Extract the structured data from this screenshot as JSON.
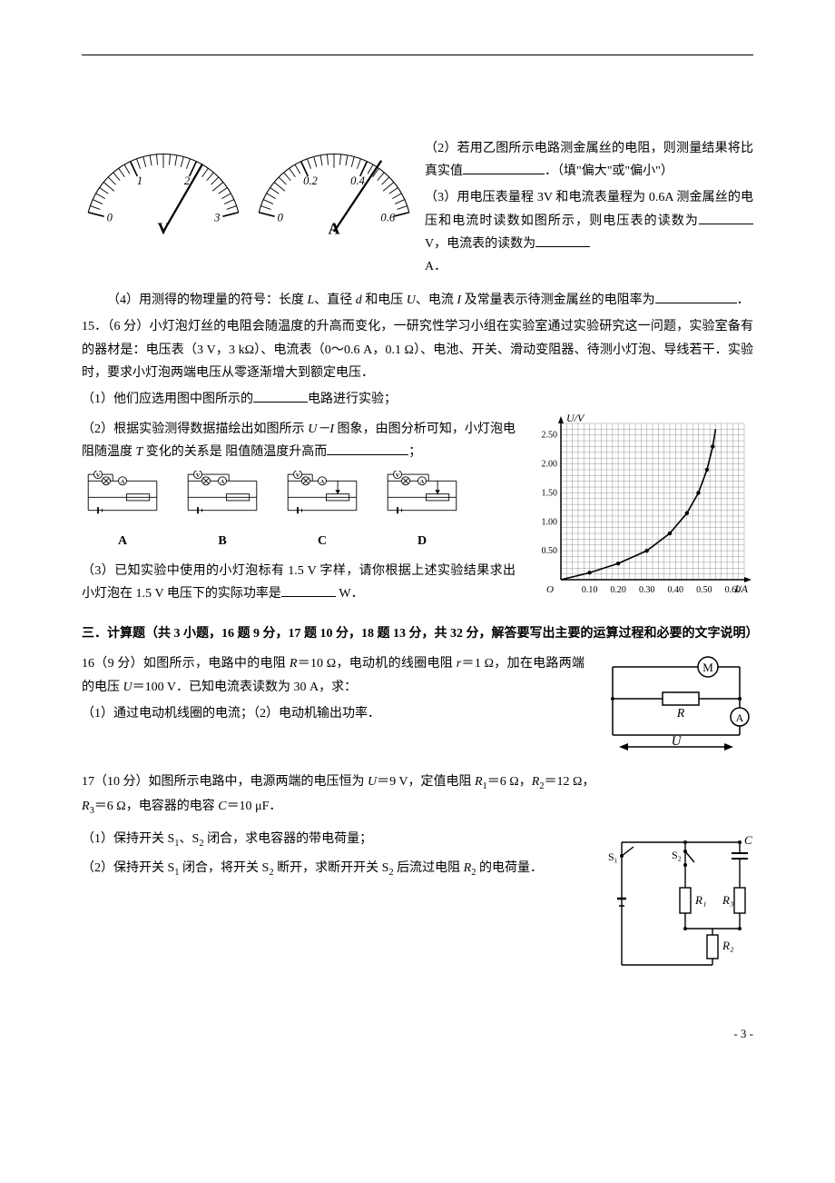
{
  "meters": {
    "volt": {
      "unit": "V",
      "ticks": [
        "0",
        "1",
        "2",
        "3"
      ],
      "needle_value": 2.45
    },
    "amp": {
      "unit": "A",
      "ticks": [
        "0",
        "0.2",
        "0.4",
        "0.6"
      ],
      "needle_value": 0.5
    }
  },
  "q14": {
    "p2": "（2）若用乙图所示电路测金属丝的电阻，则测量结果将比真实值",
    "p2_suffix": "．（填\"偏大\"或\"偏小\"）",
    "p3": "（3）用电压表量程 3V 和电流表量程为 0.6A 测金属丝的电压和电流时读数如图所示，则电压表的读数为",
    "p3_mid": " V，电流表的读数为",
    "p3_end": "A．",
    "p4_a": "（4）用测得的物理量的符号：长度 ",
    "p4_L": "L",
    "p4_b": "、直径 ",
    "p4_d": "d",
    "p4_c": " 和电压 ",
    "p4_U": "U",
    "p4_d2": "、电流 ",
    "p4_I": "I",
    "p4_e": " 及常量表示待测金属丝的电阻率为",
    "p4_end": "．"
  },
  "q15": {
    "stem_a": "15．（6 分）小灯泡灯丝的电阻会随温度的升高而变化，一研究性学习小组在实验室通过实验研究这一问题，实验室备有的器材是：电压表（3 V，3 kΩ）、电流表（0～0.6 A，0.1 Ω）、电池、开关、滑动变阻器、待测小灯泡、导线若干．实验时，要求小灯泡两端电压从零逐渐增大到额定电压．",
    "p1": "（1）他们应选用图中图所示的",
    "p1_end": "电路进行实验；",
    "p2_a": "（2）根据实验测得数据描绘出如图所示 ",
    "p2_UI": "U－I",
    "p2_b": " 图象，由图分析可知，小灯泡电阻随温度 ",
    "p2_T": "T",
    "p2_c": " 变化的关系是  阻值随温度升高而",
    "p2_end": "；",
    "p3_a": "（3）已知实验中使用的小灯泡标有 1.5 V 字样，请你根据上述实验结果求出小灯泡在 1.5 V 电压下的实际功率是",
    "p3_end": " W．",
    "circuits": [
      "A",
      "B",
      "C",
      "D"
    ],
    "graph": {
      "ylabel": "U/V",
      "xlabel": "I/A",
      "xticks": [
        "0.10",
        "0.20",
        "0.30",
        "0.40",
        "0.50",
        "0.60"
      ],
      "yticks": [
        "0.50",
        "1.00",
        "1.50",
        "2.00",
        "2.50"
      ],
      "xlim": [
        0,
        0.64
      ],
      "ylim": [
        0,
        2.7
      ],
      "grid_minor": 0.02,
      "curve_points": [
        [
          0,
          0
        ],
        [
          0.1,
          0.12
        ],
        [
          0.2,
          0.28
        ],
        [
          0.3,
          0.5
        ],
        [
          0.38,
          0.8
        ],
        [
          0.44,
          1.15
        ],
        [
          0.48,
          1.5
        ],
        [
          0.51,
          1.9
        ],
        [
          0.53,
          2.3
        ],
        [
          0.54,
          2.6
        ]
      ],
      "data_dots": [
        [
          0.1,
          0.12
        ],
        [
          0.2,
          0.28
        ],
        [
          0.3,
          0.5
        ],
        [
          0.38,
          0.8
        ],
        [
          0.44,
          1.15
        ],
        [
          0.48,
          1.5
        ],
        [
          0.51,
          1.9
        ],
        [
          0.53,
          2.3
        ]
      ],
      "axis_color": "#000",
      "grid_color": "#555",
      "curve_color": "#000"
    }
  },
  "section3": {
    "title": "三．计算题（共 3 小题，16 题 9 分，17 题 10 分，18 题 13 分，共 32 分，解答要写出主要的运算过程和必要的文字说明）"
  },
  "q16": {
    "stem_a": "16（9 分）如图所示，电路中的电阻 ",
    "R": "R",
    "stem_b": "＝10 Ω，电动机的线圈电阻 ",
    "r": "r",
    "stem_c": "＝1 Ω，加在电路两端的电压 ",
    "U": "U",
    "stem_d": "＝100 V．已知电流表读数为 30 A，求：",
    "p1": "（1）通过电动机线圈的电流；（2）电动机输出功率．",
    "diagram": {
      "M": "M",
      "R": "R",
      "A": "A",
      "U": "U"
    }
  },
  "q17": {
    "stem_a": "17（10 分）如图所示电路中，电源两端的电压恒为 ",
    "U": "U",
    "stem_b": "＝9 V，定值电阻 ",
    "R1": "R",
    "R1sub": "1",
    "stem_c": "＝6 Ω，",
    "R2": "R",
    "R2sub": "2",
    "stem_d": "＝12 Ω，",
    "R3": "R",
    "R3sub": "3",
    "stem_e": "＝6 Ω，电容器的电容 ",
    "C": "C",
    "stem_f": "＝10 μF．",
    "p1_a": "（1）保持开关 S",
    "p1_b": "、S",
    "p1_c": " 闭合，求电容器的带电荷量；",
    "p2_a": "（2）保持开关 S",
    "p2_b": " 闭合，将开关 S",
    "p2_c": " 断开，求断开开关 S",
    "p2_d": " 后流过电阻 ",
    "p2_R2": "R",
    "p2_e": " 的电荷量．",
    "diagram": {
      "S1": "S₁",
      "S2": "S₂",
      "C": "C",
      "R1": "R₁",
      "R2": "R₂",
      "R3": "R₃"
    }
  },
  "page_num": "- 3 -"
}
